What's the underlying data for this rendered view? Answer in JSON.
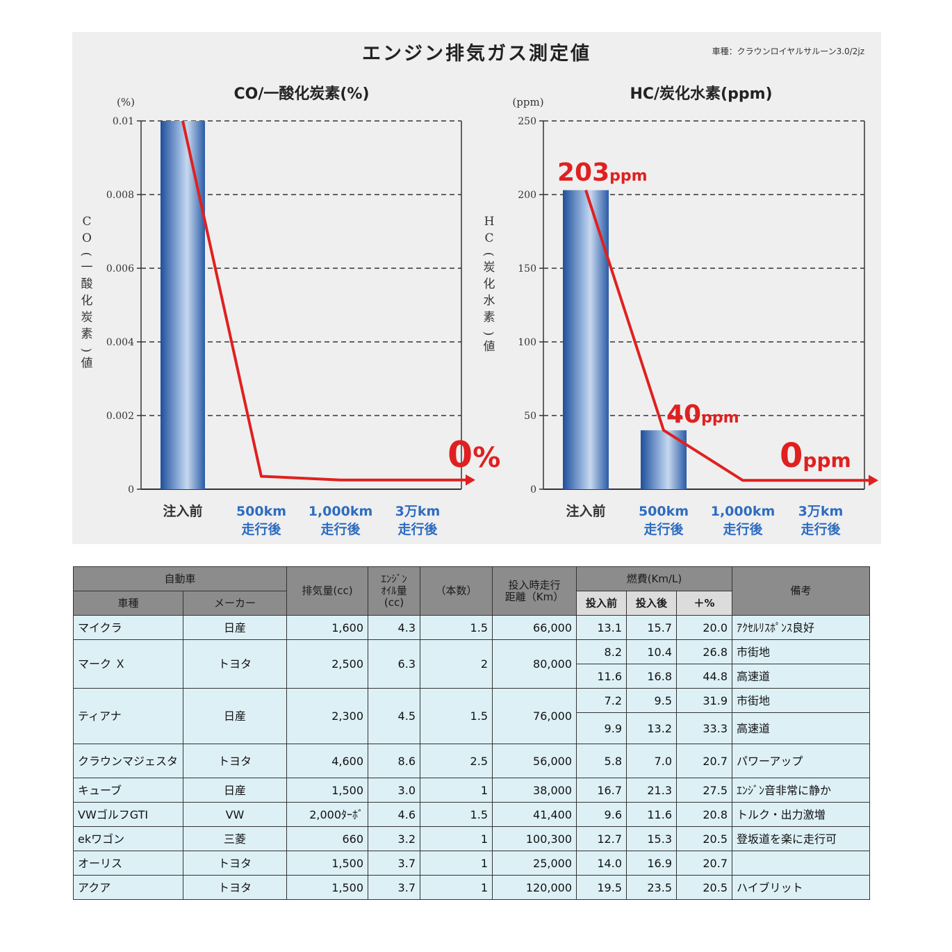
{
  "header": {
    "title": "エンジン排気ガス測定値",
    "vehicle_note": "車種：クラウンロイヤルサルーン3.0/2jz"
  },
  "chart_data": [
    {
      "type": "bar",
      "title": "CO/一酸化炭素(%)",
      "unit": "(%)",
      "ylabel": "CO(一酸化炭素)値",
      "ylim": [
        0,
        0.01
      ],
      "yticks": [
        "0.01",
        "0.008",
        "0.006",
        "0.004",
        "0.002",
        "0"
      ],
      "grid": true,
      "categories": [
        [
          "注入前"
        ],
        [
          "500km",
          "走行後"
        ],
        [
          "1,000km",
          "走行後"
        ],
        [
          "3万km",
          "走行後"
        ]
      ],
      "values": [
        0.01,
        0,
        0,
        0
      ],
      "trend_line": [
        0.01,
        0.00035,
        0.00025,
        0.00025
      ],
      "trend_color": "#e02020",
      "bar_color": "#3a6fb5",
      "annotations": [
        {
          "value": "0",
          "unit": "%"
        }
      ]
    },
    {
      "type": "bar",
      "title": "HC/炭化水素(ppm)",
      "unit": "(ppm)",
      "ylabel": "HC(炭化水素)値",
      "ylim": [
        0,
        250
      ],
      "yticks": [
        "250",
        "200",
        "150",
        "100",
        "50",
        "0"
      ],
      "grid": true,
      "categories": [
        [
          "注入前"
        ],
        [
          "500km",
          "走行後"
        ],
        [
          "1,000km",
          "走行後"
        ],
        [
          "3万km",
          "走行後"
        ]
      ],
      "values": [
        203,
        40,
        0,
        0
      ],
      "trend_line": [
        203,
        40,
        6,
        6
      ],
      "trend_color": "#e02020",
      "bar_color": "#3a6fb5",
      "annotations": [
        {
          "value": "203",
          "unit": "ppm"
        },
        {
          "value": "40",
          "unit": "ppm"
        },
        {
          "value": "0",
          "unit": "ppm"
        }
      ]
    }
  ],
  "table": {
    "headers": {
      "car": "自動車",
      "car_type": "車種",
      "maker": "メーカー",
      "displacement": "排気量(cc)",
      "oil": [
        "ｴﾝｼﾞﾝ",
        "ｵｲﾙ量",
        "(cc)"
      ],
      "count": "（本数）",
      "distance": [
        "投入時走行",
        "距離（Km）"
      ],
      "fuel": "燃費(Km/L)",
      "before": "投入前",
      "after": "投入後",
      "pct": "＋%",
      "notes": "備考"
    },
    "groups": [
      {
        "name": "マイクラ",
        "maker": "日産",
        "cc": "1,600",
        "oil": "4.3",
        "count": "1.5",
        "dist": "66,000",
        "rows": [
          {
            "before": "13.1",
            "after": "15.7",
            "pct": "20.0",
            "note": "ｱｸｾﾙﾘｽﾎﾟﾝｽ良好"
          }
        ]
      },
      {
        "name": "マーク Ｘ",
        "maker": "トヨタ",
        "cc": "2,500",
        "oil": "6.3",
        "count": "2",
        "dist": "80,000",
        "rows": [
          {
            "before": "8.2",
            "after": "10.4",
            "pct": "26.8",
            "note": "市街地"
          },
          {
            "before": "11.6",
            "after": "16.8",
            "pct": "44.8",
            "note": "高速道"
          }
        ]
      },
      {
        "name": "ティアナ",
        "maker": "日産",
        "cc": "2,300",
        "oil": "4.5",
        "count": "1.5",
        "dist": "76,000",
        "rows": [
          {
            "before": "7.2",
            "after": "9.5",
            "pct": "31.9",
            "note": "市街地"
          },
          {
            "before": "9.9",
            "after": "13.2",
            "pct": "33.3",
            "note": "高速道"
          }
        ]
      },
      {
        "name": "クラウンマジェスタ",
        "maker": "トヨタ",
        "cc": "4,600",
        "oil": "8.6",
        "count": "2.5",
        "dist": "56,000",
        "rows": [
          {
            "before": "5.8",
            "after": "7.0",
            "pct": "20.7",
            "note": "パワーアップ"
          }
        ]
      },
      {
        "name": "キューブ",
        "maker": "日産",
        "cc": "1,500",
        "oil": "3.0",
        "count": "1",
        "dist": "38,000",
        "rows": [
          {
            "before": "16.7",
            "after": "21.3",
            "pct": "27.5",
            "note": "ｴﾝｼﾞﾝ音非常に静か"
          }
        ]
      },
      {
        "name": "VWゴルフGTI",
        "maker": "VW",
        "cc": "2,000ﾀｰﾎﾞ",
        "oil": "4.6",
        "count": "1.5",
        "dist": "41,400",
        "rows": [
          {
            "before": "9.6",
            "after": "11.6",
            "pct": "20.8",
            "note": "トルク・出力激増"
          }
        ]
      },
      {
        "name": "ekワゴン",
        "maker": "三菱",
        "cc": "660",
        "oil": "3.2",
        "count": "1",
        "dist": "100,300",
        "rows": [
          {
            "before": "12.7",
            "after": "15.3",
            "pct": "20.5",
            "note": "登坂道を楽に走行可"
          }
        ]
      },
      {
        "name": "オーリス",
        "maker": "トヨタ",
        "cc": "1,500",
        "oil": "3.7",
        "count": "1",
        "dist": "25,000",
        "rows": [
          {
            "before": "14.0",
            "after": "16.9",
            "pct": "20.7",
            "note": ""
          }
        ]
      },
      {
        "name": "アクア",
        "maker": "トヨタ",
        "cc": "1,500",
        "oil": "3.7",
        "count": "1",
        "dist": "120,000",
        "rows": [
          {
            "before": "19.5",
            "after": "23.5",
            "pct": "20.5",
            "note": "ハイブリット"
          }
        ]
      }
    ]
  }
}
